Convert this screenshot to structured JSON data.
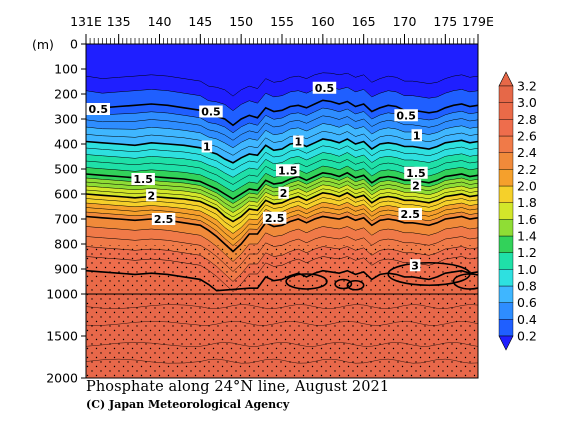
{
  "title": "Phosphate along 24°N line, August 2021",
  "credit": "(C) Japan Meteorological Agency",
  "depth_unit": "(m)",
  "colors": {
    "ramp": [
      "#1f1fff",
      "#1f5fff",
      "#2e8dff",
      "#3fb6ff",
      "#2ee0e0",
      "#1fe0a8",
      "#32d25a",
      "#8fdd35",
      "#d3e62a",
      "#f5d02a",
      "#f5a02c",
      "#f08a3a",
      "#f07a48",
      "#ee6d4c",
      "#ea6a48",
      "#e66848"
    ],
    "deep": "#e8684a",
    "contour": "#000000"
  },
  "chart_data": {
    "type": "heatmap",
    "title": "Phosphate along 24°N line, August 2021",
    "xlabel": "",
    "ylabel": "(m)",
    "x_ticks_major": [
      "131E",
      "135",
      "140",
      "145",
      "150",
      "155",
      "160",
      "165",
      "170",
      "175",
      "179E"
    ],
    "x_tick_values": [
      131,
      135,
      140,
      145,
      150,
      155,
      160,
      165,
      170,
      175,
      179
    ],
    "xlim": [
      131,
      179
    ],
    "y_ticks": [
      "0",
      "100",
      "200",
      "300",
      "400",
      "500",
      "600",
      "700",
      "800",
      "900",
      "1000",
      "1500",
      "2000"
    ],
    "y_tick_values": [
      0,
      100,
      200,
      300,
      400,
      500,
      600,
      700,
      800,
      900,
      1000,
      1500,
      2000
    ],
    "ylim": [
      0,
      2000
    ],
    "y_scale": "piecewise: linear 0-1000 m upper section, linear 1000-2000 m compressed lower section",
    "colorbar": {
      "levels": [
        "0.2",
        "0.4",
        "0.6",
        "0.8",
        "1.0",
        "1.2",
        "1.4",
        "1.6",
        "1.8",
        "2.0",
        "2.2",
        "2.4",
        "2.6",
        "2.8",
        "3.0",
        "3.2"
      ],
      "min": 0.2,
      "max": 3.2,
      "extend": "both"
    },
    "contour_labels": [
      {
        "text": "0.5",
        "x": 132.5,
        "depth": 260
      },
      {
        "text": "0.5",
        "x": 146.3,
        "depth": 270
      },
      {
        "text": "0.5",
        "x": 160.2,
        "depth": 175
      },
      {
        "text": "0.5",
        "x": 170.2,
        "depth": 285
      },
      {
        "text": "1",
        "x": 145.8,
        "depth": 410
      },
      {
        "text": "1",
        "x": 157.0,
        "depth": 390
      },
      {
        "text": "1",
        "x": 171.5,
        "depth": 365
      },
      {
        "text": "1.5",
        "x": 138.0,
        "depth": 540
      },
      {
        "text": "1.5",
        "x": 155.7,
        "depth": 505
      },
      {
        "text": "1.5",
        "x": 171.4,
        "depth": 515
      },
      {
        "text": "2",
        "x": 139.0,
        "depth": 605
      },
      {
        "text": "2",
        "x": 155.2,
        "depth": 595
      },
      {
        "text": "2",
        "x": 171.4,
        "depth": 565
      },
      {
        "text": "2.5",
        "x": 140.5,
        "depth": 700
      },
      {
        "text": "2.5",
        "x": 154.1,
        "depth": 695
      },
      {
        "text": "2.5",
        "x": 170.7,
        "depth": 680
      },
      {
        "text": "3",
        "x": 171.3,
        "depth": 885
      }
    ],
    "profile": {
      "lon": [
        131,
        133,
        135,
        137,
        139,
        141,
        143,
        145,
        146,
        147,
        148,
        149,
        150,
        151,
        152,
        153,
        154,
        155,
        156,
        157,
        158,
        159,
        160,
        161,
        162,
        163,
        164,
        165,
        166,
        167,
        168,
        169,
        170,
        171,
        172,
        173,
        174,
        175,
        176,
        177,
        178,
        179
      ],
      "depth_of_0_5": [
        245,
        255,
        250,
        245,
        240,
        245,
        255,
        265,
        285,
        290,
        300,
        325,
        300,
        285,
        295,
        255,
        270,
        265,
        250,
        245,
        255,
        240,
        225,
        230,
        240,
        230,
        250,
        240,
        270,
        255,
        245,
        250,
        265,
        265,
        270,
        275,
        270,
        255,
        245,
        240,
        250,
        245
      ],
      "depth_of_1_0": [
        390,
        395,
        400,
        405,
        395,
        400,
        405,
        415,
        430,
        440,
        460,
        475,
        455,
        440,
        445,
        405,
        425,
        420,
        400,
        395,
        410,
        395,
        380,
        385,
        395,
        380,
        400,
        390,
        420,
        400,
        395,
        400,
        410,
        410,
        415,
        420,
        410,
        395,
        390,
        385,
        395,
        390
      ],
      "depth_of_1_5": [
        520,
        525,
        530,
        535,
        530,
        535,
        540,
        550,
        565,
        580,
        600,
        620,
        600,
        580,
        585,
        545,
        560,
        555,
        540,
        530,
        545,
        530,
        515,
        520,
        530,
        515,
        535,
        525,
        555,
        535,
        530,
        535,
        545,
        545,
        550,
        555,
        545,
        530,
        525,
        520,
        530,
        525
      ],
      "depth_of_2_0": [
        600,
        605,
        610,
        615,
        610,
        615,
        620,
        630,
        645,
        660,
        690,
        710,
        690,
        660,
        665,
        625,
        640,
        635,
        620,
        610,
        625,
        610,
        595,
        600,
        610,
        595,
        615,
        605,
        635,
        615,
        610,
        615,
        625,
        625,
        630,
        635,
        625,
        610,
        605,
        600,
        610,
        605
      ],
      "depth_of_2_5": [
        690,
        695,
        700,
        705,
        700,
        705,
        715,
        725,
        745,
        770,
        800,
        830,
        800,
        760,
        760,
        715,
        730,
        725,
        710,
        700,
        715,
        700,
        690,
        695,
        700,
        690,
        705,
        695,
        725,
        705,
        700,
        705,
        715,
        715,
        720,
        725,
        715,
        700,
        695,
        690,
        700,
        695
      ]
    }
  }
}
